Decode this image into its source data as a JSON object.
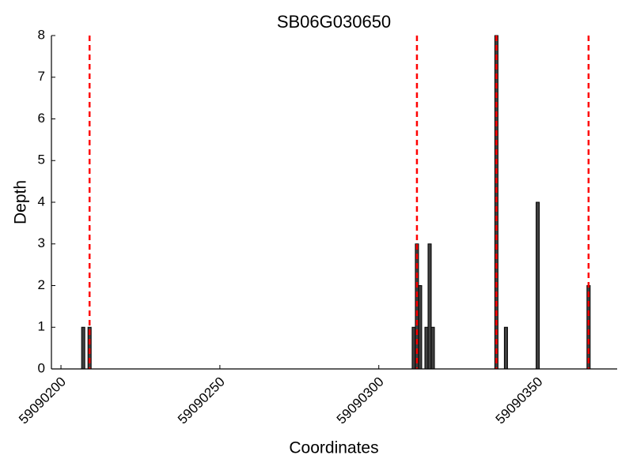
{
  "chart_data": {
    "type": "bar",
    "title": "SB06G030650",
    "xlabel": "Coordinates",
    "ylabel": "Depth",
    "x": [
      59090207,
      59090209,
      59090311,
      59090312,
      59090313,
      59090315,
      59090316,
      59090317,
      59090337,
      59090340,
      59090350,
      59090366
    ],
    "values": [
      1,
      1,
      1,
      3,
      2,
      1,
      3,
      1,
      8,
      1,
      4,
      2
    ],
    "color": "#404040",
    "vlines": [
      59090209,
      59090312,
      59090337,
      59090366
    ],
    "vline_color": "#ff0000",
    "xlim": [
      59090197,
      59090375
    ],
    "xticks": [
      59090200,
      59090250,
      59090300,
      59090350
    ],
    "ylim": [
      0,
      8
    ],
    "yticks": [
      0,
      1,
      2,
      3,
      4,
      5,
      6,
      7,
      8
    ]
  }
}
